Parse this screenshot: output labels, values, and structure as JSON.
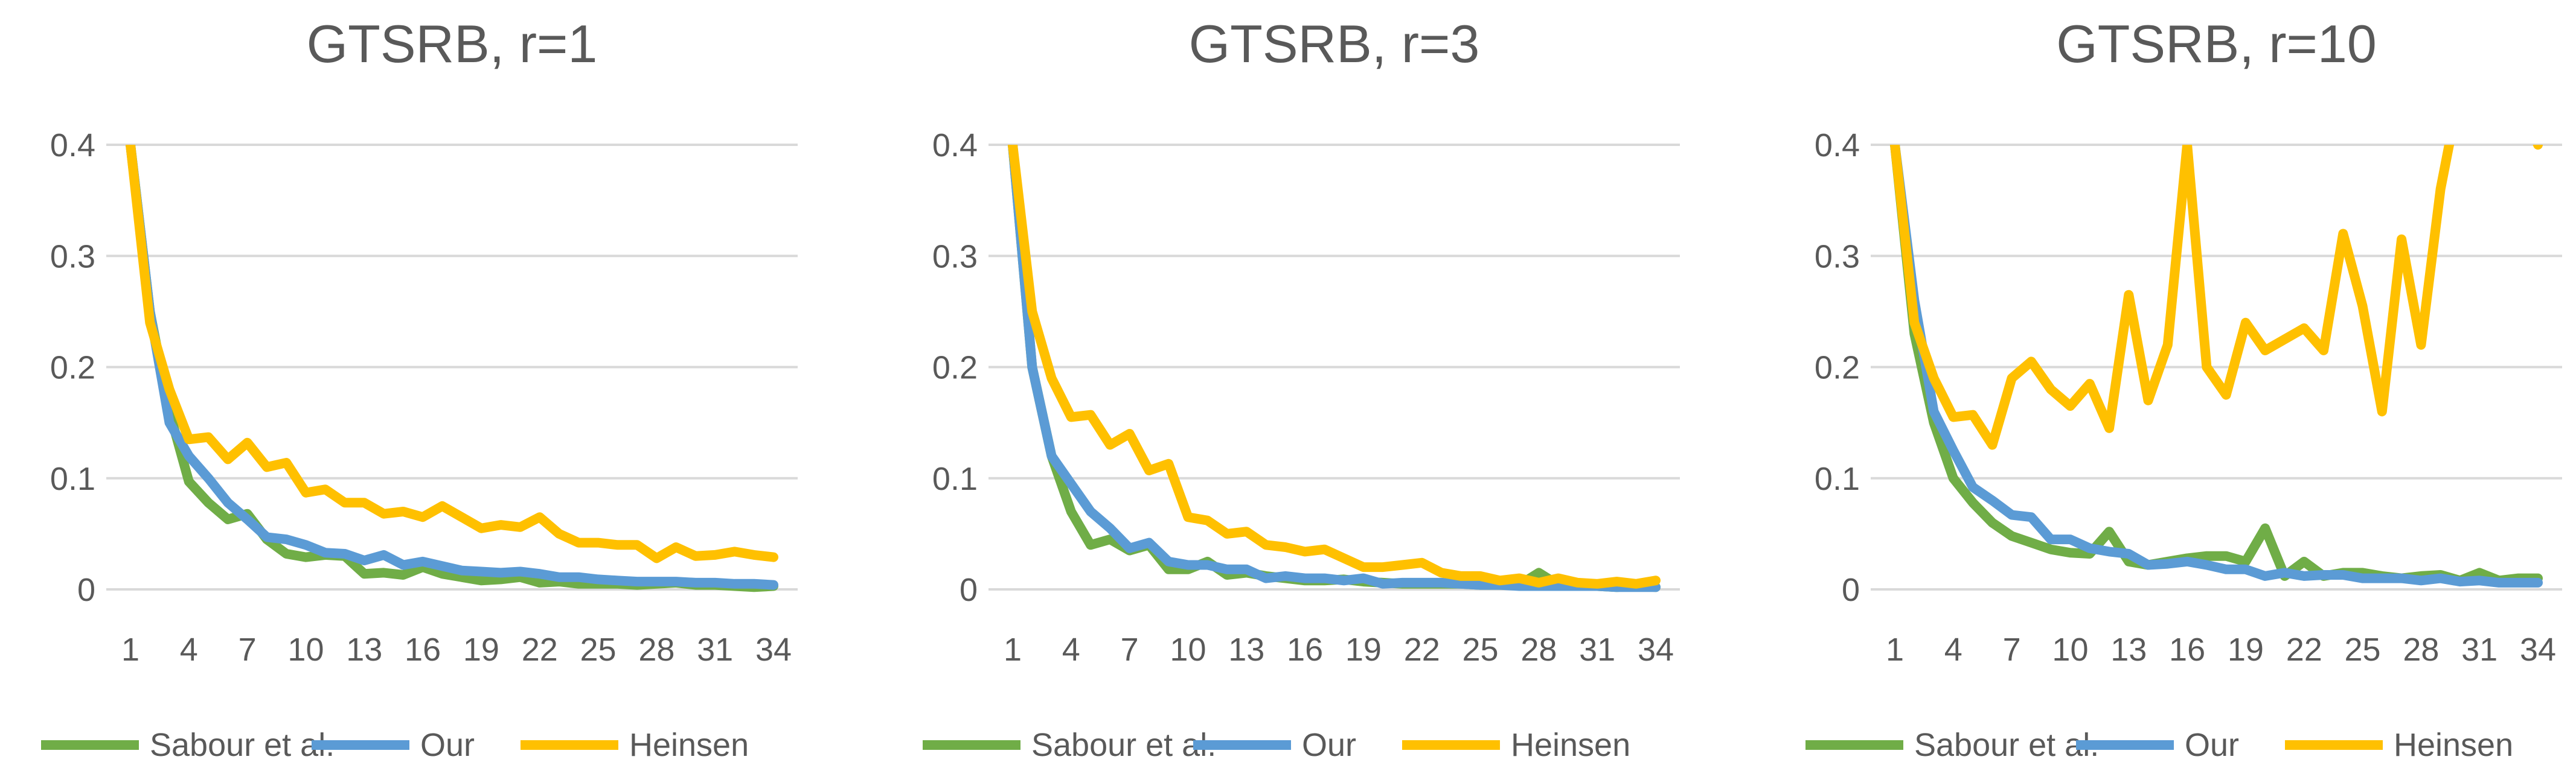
{
  "chart_data": [
    {
      "type": "line",
      "title": "GTSRB, r=1",
      "xlabel": "",
      "ylabel": "",
      "ylim": [
        0,
        0.4
      ],
      "yticks": [
        0,
        0.1,
        0.2,
        0.3,
        0.4
      ],
      "ytick_labels": [
        "0",
        "0.1",
        "0.2",
        "0.3",
        "0.4"
      ],
      "xticks": [
        1,
        4,
        7,
        10,
        13,
        16,
        19,
        22,
        25,
        28,
        31,
        34
      ],
      "grid": true,
      "legend_position": "bottom",
      "x": [
        1,
        2,
        3,
        4,
        5,
        6,
        7,
        8,
        9,
        10,
        11,
        12,
        13,
        14,
        15,
        16,
        17,
        18,
        19,
        20,
        21,
        22,
        23,
        24,
        25,
        26,
        27,
        28,
        29,
        30,
        31,
        32,
        33,
        34
      ],
      "series": [
        {
          "name": "Sabour et al.",
          "color": "#70ad47",
          "values": [
            0.4,
            0.25,
            0.16,
            0.097,
            0.078,
            0.063,
            0.068,
            0.045,
            0.032,
            0.029,
            0.031,
            0.03,
            0.014,
            0.015,
            0.013,
            0.02,
            0.014,
            0.011,
            0.008,
            0.009,
            0.011,
            0.006,
            0.007,
            0.005,
            0.005,
            0.005,
            0.004,
            0.005,
            0.006,
            0.004,
            0.004,
            0.003,
            0.002,
            0.003
          ]
        },
        {
          "name": "Our",
          "color": "#5b9bd5",
          "values": [
            0.4,
            0.25,
            0.15,
            0.12,
            0.1,
            0.078,
            0.063,
            0.047,
            0.045,
            0.04,
            0.033,
            0.032,
            0.026,
            0.031,
            0.022,
            0.025,
            0.021,
            0.017,
            0.016,
            0.015,
            0.016,
            0.014,
            0.011,
            0.011,
            0.009,
            0.008,
            0.007,
            0.007,
            0.007,
            0.006,
            0.006,
            0.005,
            0.005,
            0.004
          ]
        },
        {
          "name": "Heinsen",
          "color": "#ffc000",
          "values": [
            0.4,
            0.24,
            0.18,
            0.135,
            0.137,
            0.117,
            0.132,
            0.11,
            0.114,
            0.087,
            0.09,
            0.078,
            0.078,
            0.068,
            0.07,
            0.065,
            0.075,
            0.065,
            0.055,
            0.058,
            0.056,
            0.065,
            0.05,
            0.042,
            0.042,
            0.04,
            0.04,
            0.028,
            0.038,
            0.03,
            0.031,
            0.034,
            0.031,
            0.029
          ]
        }
      ]
    },
    {
      "type": "line",
      "title": "GTSRB, r=3",
      "xlabel": "",
      "ylabel": "",
      "ylim": [
        0,
        0.4
      ],
      "yticks": [
        0,
        0.1,
        0.2,
        0.3,
        0.4
      ],
      "ytick_labels": [
        "0",
        "0.1",
        "0.2",
        "0.3",
        "0.4"
      ],
      "xticks": [
        1,
        4,
        7,
        10,
        13,
        16,
        19,
        22,
        25,
        28,
        31,
        34
      ],
      "grid": true,
      "legend_position": "bottom",
      "x": [
        1,
        2,
        3,
        4,
        5,
        6,
        7,
        8,
        9,
        10,
        11,
        12,
        13,
        14,
        15,
        16,
        17,
        18,
        19,
        20,
        21,
        22,
        23,
        24,
        25,
        26,
        27,
        28,
        29,
        30,
        31,
        32,
        33,
        34
      ],
      "series": [
        {
          "name": "Sabour et al.",
          "color": "#70ad47",
          "values": [
            0.4,
            0.2,
            0.12,
            0.07,
            0.04,
            0.045,
            0.035,
            0.04,
            0.018,
            0.018,
            0.025,
            0.013,
            0.015,
            0.012,
            0.01,
            0.008,
            0.008,
            0.009,
            0.007,
            0.006,
            0.005,
            0.005,
            0.005,
            0.005,
            0.004,
            0.004,
            0.004,
            0.015,
            0.004,
            0.003,
            0.003,
            0.002,
            0.003,
            0.002
          ]
        },
        {
          "name": "Our",
          "color": "#5b9bd5",
          "values": [
            0.4,
            0.2,
            0.12,
            0.095,
            0.07,
            0.055,
            0.037,
            0.042,
            0.025,
            0.022,
            0.022,
            0.018,
            0.018,
            0.01,
            0.012,
            0.01,
            0.01,
            0.008,
            0.01,
            0.005,
            0.006,
            0.006,
            0.006,
            0.005,
            0.004,
            0.004,
            0.003,
            0.003,
            0.003,
            0.003,
            0.003,
            0.002,
            0.002,
            0.002
          ]
        },
        {
          "name": "Heinsen",
          "color": "#ffc000",
          "values": [
            0.4,
            0.25,
            0.19,
            0.155,
            0.157,
            0.13,
            0.14,
            0.107,
            0.113,
            0.065,
            0.062,
            0.05,
            0.052,
            0.04,
            0.038,
            0.034,
            0.036,
            0.028,
            0.02,
            0.02,
            0.022,
            0.024,
            0.015,
            0.012,
            0.012,
            0.008,
            0.01,
            0.006,
            0.01,
            0.006,
            0.005,
            0.007,
            0.005,
            0.008
          ]
        }
      ]
    },
    {
      "type": "line",
      "title": "GTSRB, r=10",
      "xlabel": "",
      "ylabel": "",
      "ylim": [
        0,
        0.4
      ],
      "yticks": [
        0,
        0.1,
        0.2,
        0.3,
        0.4
      ],
      "ytick_labels": [
        "0",
        "0.1",
        "0.2",
        "0.3",
        "0.4"
      ],
      "xticks": [
        1,
        4,
        7,
        10,
        13,
        16,
        19,
        22,
        25,
        28,
        31,
        34
      ],
      "grid": true,
      "legend_position": "bottom",
      "x": [
        1,
        2,
        3,
        4,
        5,
        6,
        7,
        8,
        9,
        10,
        11,
        12,
        13,
        14,
        15,
        16,
        17,
        18,
        19,
        20,
        21,
        22,
        23,
        24,
        25,
        26,
        27,
        28,
        29,
        30,
        31,
        32,
        33,
        34
      ],
      "series": [
        {
          "name": "Sabour et al.",
          "color": "#70ad47",
          "values": [
            0.4,
            0.23,
            0.15,
            0.1,
            0.078,
            0.06,
            0.048,
            0.042,
            0.036,
            0.033,
            0.032,
            0.052,
            0.025,
            0.022,
            0.025,
            0.028,
            0.03,
            0.03,
            0.025,
            0.055,
            0.012,
            0.025,
            0.012,
            0.015,
            0.015,
            0.012,
            0.01,
            0.012,
            0.013,
            0.008,
            0.015,
            0.008,
            0.01,
            0.01
          ]
        },
        {
          "name": "Our",
          "color": "#5b9bd5",
          "values": [
            0.4,
            0.26,
            0.16,
            0.125,
            0.092,
            0.08,
            0.067,
            0.065,
            0.045,
            0.045,
            0.037,
            0.034,
            0.032,
            0.022,
            0.023,
            0.025,
            0.022,
            0.018,
            0.018,
            0.012,
            0.015,
            0.012,
            0.013,
            0.013,
            0.01,
            0.01,
            0.01,
            0.008,
            0.01,
            0.007,
            0.008,
            0.006,
            0.006,
            0.006
          ]
        },
        {
          "name": "Heinsen",
          "color": "#ffc000",
          "values": [
            0.4,
            0.24,
            0.19,
            0.155,
            0.157,
            0.13,
            0.19,
            0.205,
            0.18,
            0.165,
            0.185,
            0.145,
            0.265,
            0.17,
            0.22,
            0.4,
            0.2,
            0.175,
            0.24,
            0.215,
            0.225,
            0.235,
            0.215,
            0.32,
            0.255,
            0.16,
            0.315,
            0.22,
            0.36,
            0.45,
            0.45,
            0.45,
            0.45,
            0.4
          ]
        }
      ]
    }
  ]
}
